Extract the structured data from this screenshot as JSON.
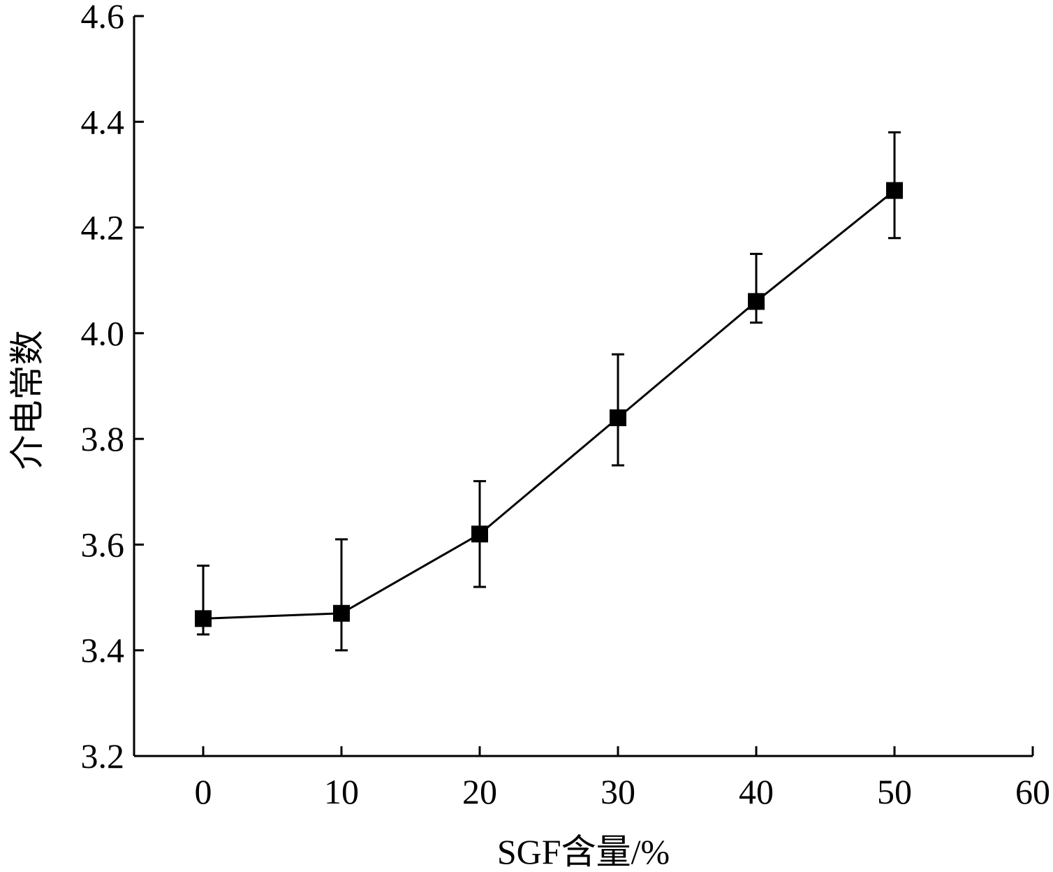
{
  "chart_data": {
    "type": "line",
    "xlabel": "SGF含量/%",
    "ylabel": "介电常数",
    "xlim": [
      -5,
      60
    ],
    "ylim": [
      3.2,
      4.6
    ],
    "xticks": [
      0,
      10,
      20,
      30,
      40,
      50,
      60
    ],
    "yticks": [
      3.2,
      3.4,
      3.6,
      3.8,
      4.0,
      4.2,
      4.4,
      4.6
    ],
    "xtick_labels": [
      "0",
      "10",
      "20",
      "30",
      "40",
      "50",
      "60"
    ],
    "ytick_labels": [
      "3.2",
      "3.4",
      "3.6",
      "3.8",
      "4.0",
      "4.2",
      "4.4",
      "4.6"
    ],
    "grid": false,
    "marker": "square",
    "color": "#000000",
    "series": [
      {
        "x": [
          0,
          10,
          20,
          30,
          40,
          50
        ],
        "y": [
          3.46,
          3.47,
          3.62,
          3.84,
          4.06,
          4.27
        ],
        "error_high": [
          3.56,
          3.61,
          3.72,
          3.96,
          4.15,
          4.38
        ],
        "error_low": [
          3.43,
          3.4,
          3.52,
          3.75,
          4.02,
          4.18
        ]
      }
    ]
  }
}
